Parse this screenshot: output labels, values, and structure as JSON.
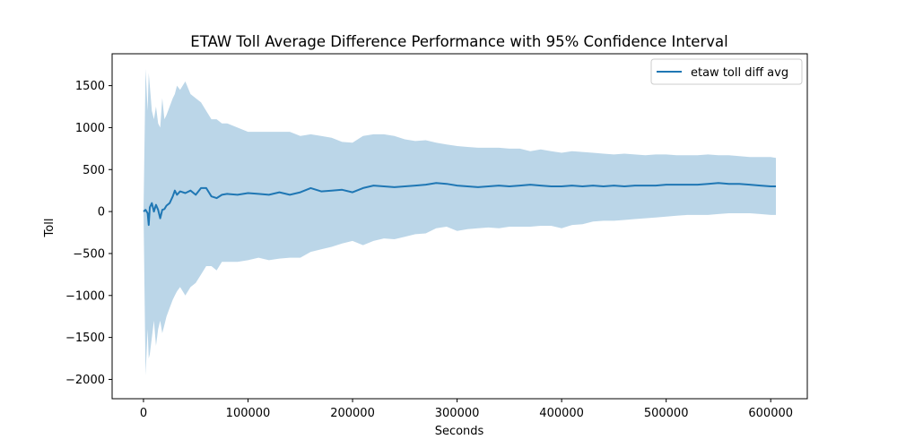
{
  "chart_data": {
    "type": "line",
    "title": "ETAW Toll Average Difference Performance with 95% Confidence Interval",
    "xlabel": "Seconds",
    "ylabel": "Toll",
    "xlim": [
      -30000,
      635000
    ],
    "ylim": [
      -2230,
      1880
    ],
    "x_ticks": [
      0,
      100000,
      200000,
      300000,
      400000,
      500000,
      600000
    ],
    "x_tick_labels": [
      "0",
      "100000",
      "200000",
      "300000",
      "400000",
      "500000",
      "600000"
    ],
    "y_ticks": [
      -2000,
      -1500,
      -1000,
      -500,
      0,
      500,
      1000,
      1500
    ],
    "y_tick_labels": [
      "−2000",
      "−1500",
      "−1000",
      "−500",
      "0",
      "500",
      "1000",
      "1500"
    ],
    "grid": false,
    "legend_position": "top-right",
    "colors": {
      "line": "#1f77b4",
      "band": "#1f77b4"
    },
    "series": [
      {
        "name": "etaw toll diff avg",
        "x": [
          0,
          2000,
          4000,
          5000,
          6000,
          8000,
          10000,
          12000,
          14000,
          16000,
          18000,
          20000,
          22000,
          25000,
          28000,
          30000,
          32000,
          35000,
          40000,
          45000,
          50000,
          55000,
          60000,
          65000,
          70000,
          75000,
          80000,
          90000,
          100000,
          110000,
          120000,
          130000,
          140000,
          150000,
          160000,
          170000,
          180000,
          190000,
          200000,
          210000,
          220000,
          230000,
          240000,
          250000,
          260000,
          270000,
          280000,
          290000,
          300000,
          310000,
          320000,
          330000,
          340000,
          350000,
          360000,
          370000,
          380000,
          390000,
          400000,
          410000,
          420000,
          430000,
          440000,
          450000,
          460000,
          470000,
          480000,
          490000,
          500000,
          510000,
          520000,
          530000,
          540000,
          550000,
          560000,
          570000,
          580000,
          590000,
          600000,
          605000
        ],
        "y": [
          0,
          20,
          -20,
          -160,
          50,
          100,
          0,
          80,
          20,
          -80,
          20,
          30,
          70,
          100,
          180,
          250,
          200,
          240,
          220,
          250,
          200,
          280,
          280,
          180,
          160,
          200,
          210,
          200,
          220,
          210,
          200,
          230,
          200,
          230,
          280,
          240,
          250,
          260,
          230,
          280,
          310,
          300,
          290,
          300,
          310,
          320,
          340,
          330,
          310,
          300,
          290,
          300,
          310,
          300,
          310,
          320,
          310,
          300,
          300,
          310,
          300,
          310,
          300,
          310,
          300,
          310,
          310,
          310,
          320,
          320,
          320,
          320,
          330,
          340,
          330,
          330,
          320,
          310,
          300,
          300
        ],
        "ci_upper": [
          0,
          1700,
          1200,
          1650,
          1500,
          1200,
          1100,
          1250,
          1050,
          1000,
          1350,
          1100,
          1150,
          1250,
          1350,
          1400,
          1500,
          1450,
          1550,
          1400,
          1350,
          1300,
          1200,
          1100,
          1100,
          1050,
          1050,
          1000,
          950,
          950,
          950,
          950,
          950,
          900,
          920,
          900,
          880,
          830,
          820,
          900,
          920,
          920,
          900,
          860,
          840,
          850,
          820,
          800,
          780,
          770,
          760,
          760,
          760,
          750,
          750,
          720,
          740,
          720,
          700,
          720,
          710,
          700,
          690,
          680,
          690,
          680,
          670,
          680,
          680,
          670,
          670,
          670,
          680,
          670,
          670,
          660,
          650,
          650,
          650,
          640
        ],
        "ci_lower": [
          0,
          -1950,
          -1400,
          -1750,
          -1700,
          -1500,
          -1300,
          -1600,
          -1400,
          -1300,
          -1450,
          -1350,
          -1250,
          -1150,
          -1050,
          -1000,
          -950,
          -900,
          -1000,
          -900,
          -850,
          -750,
          -650,
          -650,
          -700,
          -600,
          -600,
          -600,
          -580,
          -550,
          -580,
          -560,
          -550,
          -550,
          -480,
          -450,
          -420,
          -380,
          -350,
          -400,
          -350,
          -320,
          -330,
          -300,
          -270,
          -260,
          -200,
          -180,
          -230,
          -210,
          -200,
          -190,
          -200,
          -180,
          -180,
          -180,
          -170,
          -170,
          -200,
          -160,
          -150,
          -120,
          -110,
          -110,
          -100,
          -90,
          -80,
          -70,
          -60,
          -50,
          -40,
          -40,
          -40,
          -30,
          -20,
          -20,
          -20,
          -30,
          -40,
          -40
        ]
      }
    ]
  }
}
